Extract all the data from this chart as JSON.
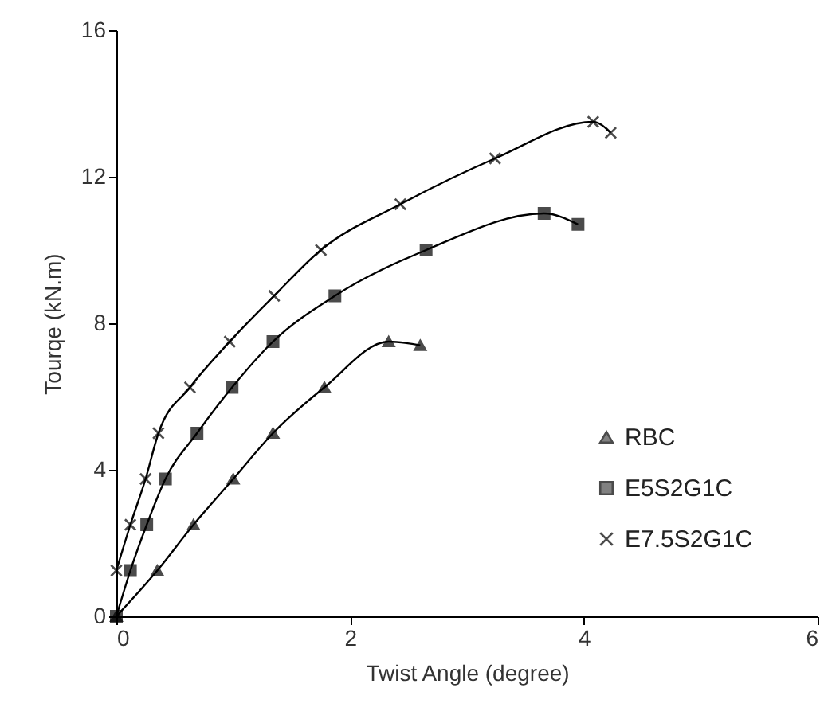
{
  "chart_data": {
    "type": "line",
    "xlabel": "Twist Angle (degree)",
    "ylabel": "Tourqe (kN.m)",
    "xlim": [
      0,
      6
    ],
    "xticks": [
      0,
      2,
      4,
      6
    ],
    "ylim": [
      0,
      16
    ],
    "yticks": [
      0,
      4,
      8,
      12,
      16
    ],
    "grid": false,
    "legend": "bottom right",
    "series": [
      {
        "name": "RBC",
        "color": "#000000",
        "marker": "triangle",
        "x": [
          0,
          0.35,
          0.66,
          1.0,
          1.34,
          1.78,
          2.33,
          2.6
        ],
        "values": [
          0,
          1.25,
          2.5,
          3.75,
          5,
          6.25,
          7.5,
          7.4
        ]
      },
      {
        "name": "E5S2G1C",
        "color": "#000000",
        "marker": "square",
        "x": [
          0,
          0.12,
          0.26,
          0.42,
          0.69,
          0.99,
          1.34,
          1.87,
          2.65,
          3.66,
          3.95
        ],
        "values": [
          0,
          1.25,
          2.5,
          3.75,
          5,
          6.25,
          7.5,
          8.75,
          10,
          11,
          10.7
        ]
      },
      {
        "name": "E7.5S2G1C",
        "color": "#000000",
        "marker": "cross",
        "x": [
          0,
          0.12,
          0.25,
          0.36,
          0.63,
          0.97,
          1.35,
          1.75,
          2.43,
          3.24,
          4.08,
          4.23
        ],
        "values": [
          1.25,
          2.5,
          3.75,
          5,
          6.25,
          7.5,
          8.75,
          10,
          11.25,
          12.5,
          13.5,
          13.2
        ]
      }
    ]
  }
}
